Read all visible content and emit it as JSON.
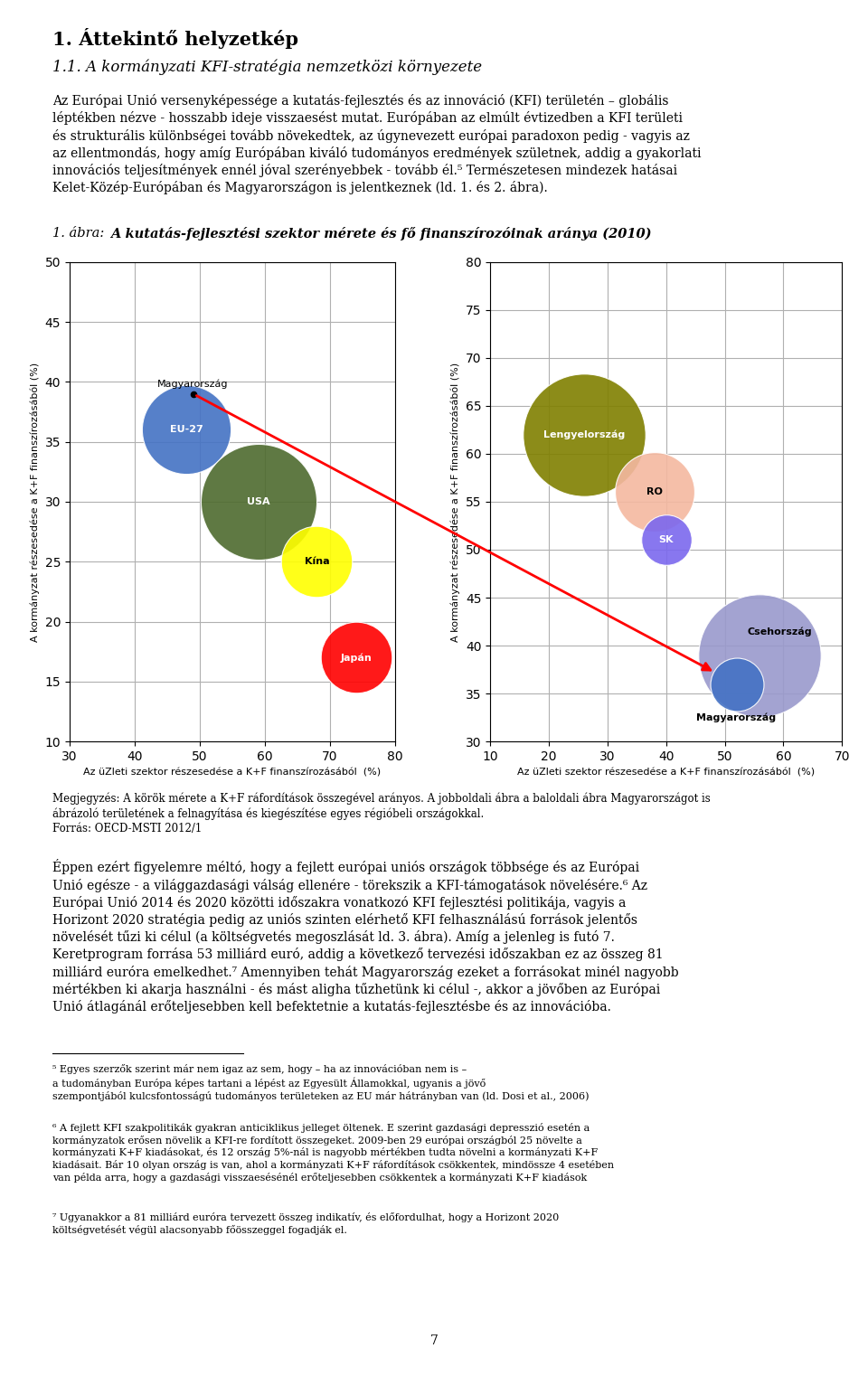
{
  "title": "1. Áttekintő helyzetkép",
  "subtitle": "1.1. A kormányzati KFI-stratégia nemzetközi környezete",
  "text_before_figure": "Az Európai Unió versenyképessége a kutatás-fejlesztés és az innováció (KFI) területén – globális\nléptékben nézve - hosszabb ideje visszaesést mutat. Európában az elmúlt évtizedben a KFI területi\nés strukturális különbségei tovább növekedtek, az úgynevezett európai paradoxon pedig - vagyis az\naz ellentmondás, hogy amíg Európában kiváló tudományos eredmények születnek, addig a gyakorlati\ninnovációs teljesítmények ennél jóval szerényebbek - tovább él.⁵ Természetesen mindezek hatásai\nKelet-Közép-Európában és Magyarországon is jelentkeznek (ld. 1. és 2. ábra).",
  "figure_label": "1. ábra:",
  "figure_title": "A kutatás-fejlesztési szektor mérete és fő finanszírozóinak aránya (2010)",
  "figure_note": "Megjegyzés: A körök mérete a K+F ráfordítások összegével arányos. A jobboldali ábra a baloldali ábra Magyarországot is\nábrázoló területének a felnagyítása és kiegészítése egyes régióbeli országokkal.\nForrás: OECD-MSTI 2012/1",
  "text_after_figure": "Éppen ezért figyelemre méltó, hogy a fejlett európai uniós országok többsége és az Európai\nUnió egésze - a világgazdasági válság ellenére - törekszik a KFI-támogatások növelésére.⁶ Az\nEurópai Unió 2014 és 2020 közötti időszakra vonatkozó KFI fejlesztési politikája, vagyis a\nHorizont 2020 stratégia pedig az uniós szinten elérhető KFI felhasználású források jelentős\nnövelését tűzi ki célul (a költségvetés megoszlását ld. 3. ábra). Amíg a jelenleg is futó 7.\nKeretprogram forrása 53 milliárd euró, addig a következő tervezési időszakban ez az összeg 81\nmilliárd euróra emelkedhet.⁷ Amennyiben tehát Magyarország ezeket a forrásokat minél nagyobb\nmértékben ki akarja használni - és mást aligha tűzhetünk ki célul -, akkor a jövőben az Európai\nUnió átlagánál erőteljesebben kell befektetnie a kutatás-fejlesztésbe és az innovációba.",
  "footnotes": [
    "⁵ Egyes szerzők szerint már nem igaz az sem, hogy – ha az innovációban nem is –\na tudományban Európa képes tartani a lépést az Egyesült Államokkal, ugyanis a jövő\nszempontjából kulcsfontosságú tudományos területeken az EU már hátrányban van (ld. Dosi et al., 2006)",
    "⁶ A fejlett KFI szakpolitikák gyakran anticiklikus jelleget öltenek. E szerint gazdasági depresszió esetén a\nkormányzatok erősen növelik a KFI-re fordított összegeket. 2009-ben 29 európai országból 25 növelte a\nkormányzati K+F kiadásokat, és 12 ország 5%-nál is nagyobb mértékben tudta növelni a kormányzati K+F\nkiadásait. Bár 10 olyan ország is van, ahol a kormányzati K+F ráfordítások csökkentek, mindössze 4 esetében\nvan példa arra, hogy a gazdasági visszaesésénél erőteljesebben csökkentek a kormányzati K+F kiadások",
    "⁷ Ugyanakkor a 81 milliárd euróra tervezett összeg indikatív, és előfordulhat, hogy a Horizont 2020\nköltségvetését végül alacsonyabb főösszeggel fogadják el."
  ],
  "page_number": "7",
  "chart_data": [
    {
      "type": "bubble",
      "x": [
        48,
        59,
        68,
        74
      ],
      "values": [
        36,
        30,
        25,
        17
      ],
      "sizes": [
        5000,
        8500,
        3200,
        3200
      ],
      "colors": [
        "#4472C4",
        "#4E6B2E",
        "#FFFF00",
        "#FF0000"
      ],
      "labels": [
        "EU-27",
        "USA",
        "Kína",
        "Japán"
      ],
      "xlabel": "Az üZleti szektor részesedése a K+F finanszírozásából  (%)",
      "ylabel": "A kormányzat részesedése a K+F finanszírozásából (%)",
      "xlim": [
        30,
        80
      ],
      "ylim": [
        10,
        50
      ],
      "xticks": [
        30,
        40,
        50,
        60,
        70,
        80
      ],
      "yticks": [
        10,
        15,
        20,
        25,
        30,
        35,
        40,
        45,
        50
      ],
      "grid": true,
      "annotations": [
        {
          "x": 49,
          "y": 39,
          "text": "Magyarország"
        }
      ]
    },
    {
      "type": "bubble",
      "x": [
        26,
        38,
        40,
        56,
        52
      ],
      "values": [
        62,
        56,
        51,
        39,
        36
      ],
      "sizes": [
        9500,
        4000,
        1600,
        9500,
        1800
      ],
      "colors": [
        "#808000",
        "#F4B8A0",
        "#7B68EE",
        "#9999CC",
        "#4472C4"
      ],
      "labels": [
        "Lengyelország",
        "RO",
        "SK",
        "Csehország",
        "Magyarország"
      ],
      "xlabel": "Az üZleti szektor részesedése a K+F finanszírozásából  (%)",
      "ylabel": "A kormányzat részesedése a K+F finanszírozásából (%)",
      "xlim": [
        10,
        70
      ],
      "ylim": [
        30,
        80
      ],
      "xticks": [
        10,
        20,
        30,
        40,
        50,
        60,
        70
      ],
      "yticks": [
        30,
        35,
        40,
        45,
        50,
        55,
        60,
        65,
        70,
        75,
        80
      ],
      "grid": true
    }
  ]
}
